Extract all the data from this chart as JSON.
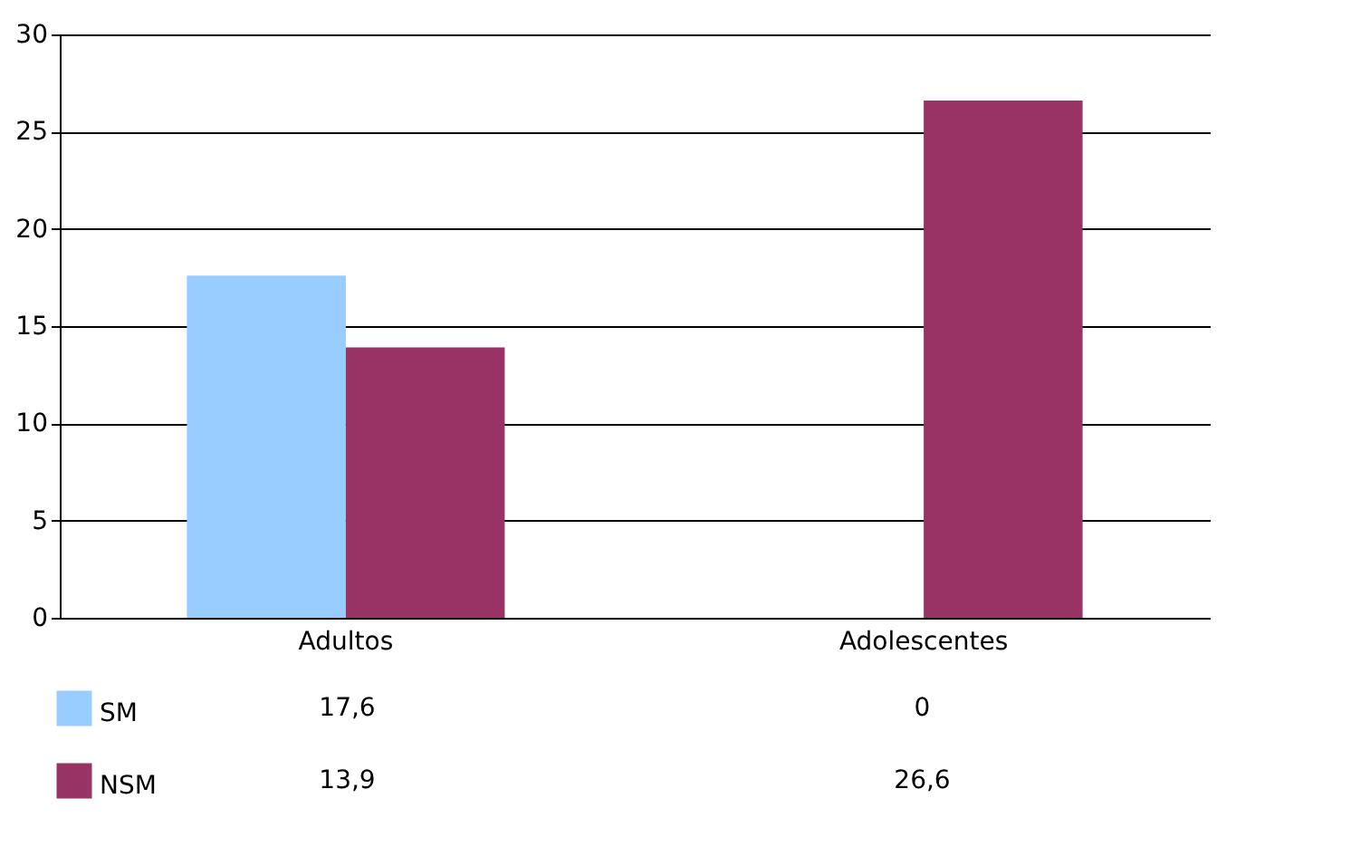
{
  "chart_data": {
    "type": "bar",
    "categories": [
      "Adultos",
      "Adolescentes"
    ],
    "series": [
      {
        "name": "SM",
        "color": "#99ccff",
        "values": [
          17.6,
          0
        ],
        "value_labels": [
          "17,6",
          "0"
        ]
      },
      {
        "name": "NSM",
        "color": "#993366",
        "values": [
          13.9,
          26.6
        ],
        "value_labels": [
          "13,9",
          "26,6"
        ]
      }
    ],
    "ylim": [
      0,
      30
    ],
    "yticks": [
      0,
      5,
      10,
      15,
      20,
      25,
      30
    ],
    "grid": "y",
    "legend": "bottom"
  }
}
